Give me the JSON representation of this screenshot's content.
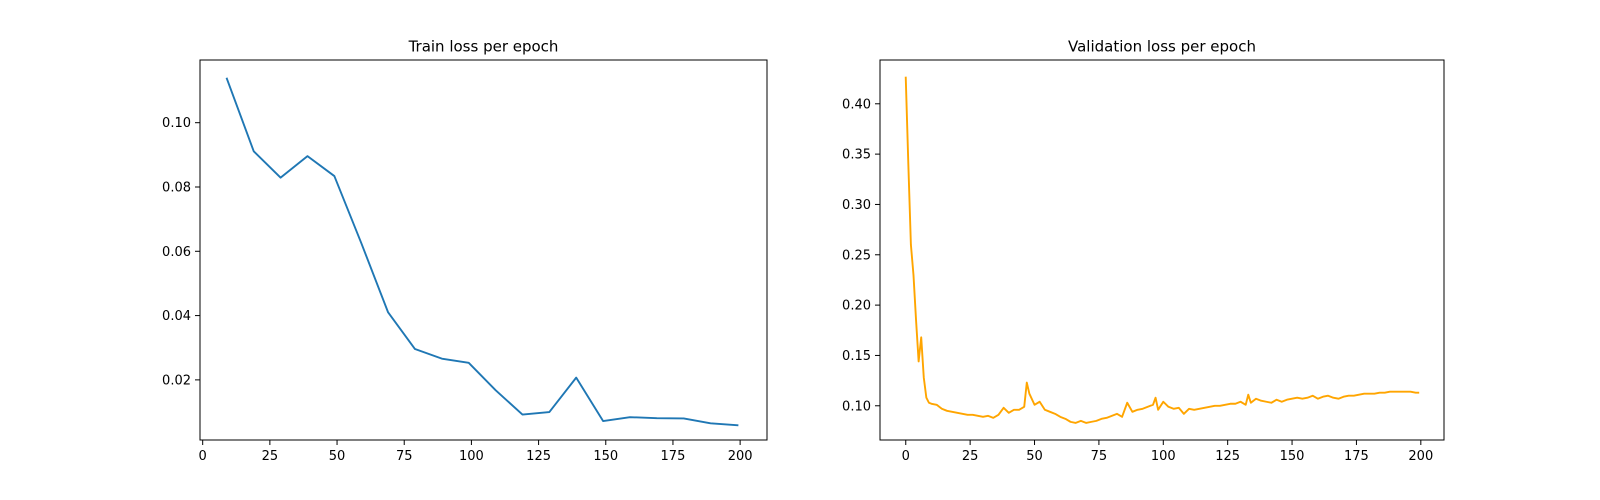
{
  "chart_data": [
    {
      "type": "line",
      "title": "Train loss per epoch",
      "xlabel": "",
      "ylabel": "",
      "xlim": [
        -1,
        210
      ],
      "ylim": [
        0.0013,
        0.1195
      ],
      "xticks": [
        0,
        25,
        50,
        75,
        100,
        125,
        150,
        175,
        200
      ],
      "yticks": [
        0.02,
        0.04,
        0.06,
        0.08,
        0.1
      ],
      "ytick_labels": [
        "0.02",
        "0.04",
        "0.06",
        "0.08",
        "0.10"
      ],
      "grid": false,
      "series": [
        {
          "color": "#1f77b4",
          "x": [
            9,
            19,
            29,
            39,
            49,
            59,
            69,
            79,
            89,
            99,
            109,
            119,
            129,
            139,
            149,
            159,
            169,
            179,
            189,
            199
          ],
          "y": [
            0.1137,
            0.0911,
            0.0829,
            0.0896,
            0.0834,
            0.0626,
            0.041,
            0.0296,
            0.0266,
            0.0253,
            0.0168,
            0.0092,
            0.01,
            0.0207,
            0.0072,
            0.0084,
            0.0081,
            0.008,
            0.0065,
            0.0059
          ]
        }
      ]
    },
    {
      "type": "line",
      "title": "Validation loss per epoch",
      "xlabel": "",
      "ylabel": "",
      "xlim": [
        -10,
        209
      ],
      "ylim": [
        0.066,
        0.4435
      ],
      "xticks": [
        0,
        25,
        50,
        75,
        100,
        125,
        150,
        175,
        200
      ],
      "yticks": [
        0.1,
        0.15,
        0.2,
        0.25,
        0.3,
        0.35,
        0.4
      ],
      "ytick_labels": [
        "0.10",
        "0.15",
        "0.20",
        "0.25",
        "0.30",
        "0.35",
        "0.40"
      ],
      "grid": false,
      "series": [
        {
          "color": "#ffa500",
          "x": [
            0,
            1,
            2,
            3,
            4,
            5,
            6,
            7,
            8,
            9,
            10,
            12,
            14,
            16,
            18,
            20,
            22,
            24,
            26,
            28,
            30,
            32,
            34,
            36,
            38,
            40,
            42,
            44,
            46,
            47,
            48,
            50,
            52,
            54,
            56,
            58,
            60,
            62,
            64,
            66,
            68,
            70,
            72,
            74,
            76,
            78,
            80,
            82,
            84,
            86,
            88,
            90,
            92,
            94,
            96,
            97,
            98,
            100,
            102,
            104,
            106,
            108,
            110,
            112,
            114,
            116,
            118,
            120,
            122,
            124,
            126,
            128,
            130,
            132,
            133,
            134,
            136,
            138,
            140,
            142,
            144,
            146,
            148,
            150,
            152,
            154,
            156,
            158,
            160,
            162,
            164,
            166,
            168,
            170,
            172,
            174,
            176,
            178,
            180,
            182,
            184,
            186,
            188,
            190,
            192,
            194,
            196,
            198,
            199
          ],
          "y": [
            0.426,
            0.34,
            0.26,
            0.23,
            0.185,
            0.144,
            0.168,
            0.128,
            0.108,
            0.103,
            0.102,
            0.101,
            0.097,
            0.095,
            0.094,
            0.093,
            0.092,
            0.091,
            0.091,
            0.09,
            0.089,
            0.09,
            0.088,
            0.091,
            0.098,
            0.093,
            0.096,
            0.096,
            0.099,
            0.123,
            0.112,
            0.101,
            0.104,
            0.096,
            0.094,
            0.092,
            0.089,
            0.087,
            0.084,
            0.083,
            0.085,
            0.083,
            0.084,
            0.085,
            0.087,
            0.088,
            0.09,
            0.092,
            0.089,
            0.103,
            0.094,
            0.096,
            0.097,
            0.099,
            0.101,
            0.108,
            0.096,
            0.104,
            0.099,
            0.097,
            0.098,
            0.092,
            0.097,
            0.096,
            0.097,
            0.098,
            0.099,
            0.1,
            0.1,
            0.101,
            0.102,
            0.102,
            0.104,
            0.101,
            0.111,
            0.103,
            0.107,
            0.105,
            0.104,
            0.103,
            0.106,
            0.104,
            0.106,
            0.107,
            0.108,
            0.107,
            0.108,
            0.11,
            0.107,
            0.109,
            0.11,
            0.108,
            0.107,
            0.109,
            0.11,
            0.11,
            0.111,
            0.112,
            0.112,
            0.112,
            0.113,
            0.113,
            0.114,
            0.114,
            0.114,
            0.114,
            0.114,
            0.113,
            0.113
          ]
        }
      ]
    }
  ]
}
